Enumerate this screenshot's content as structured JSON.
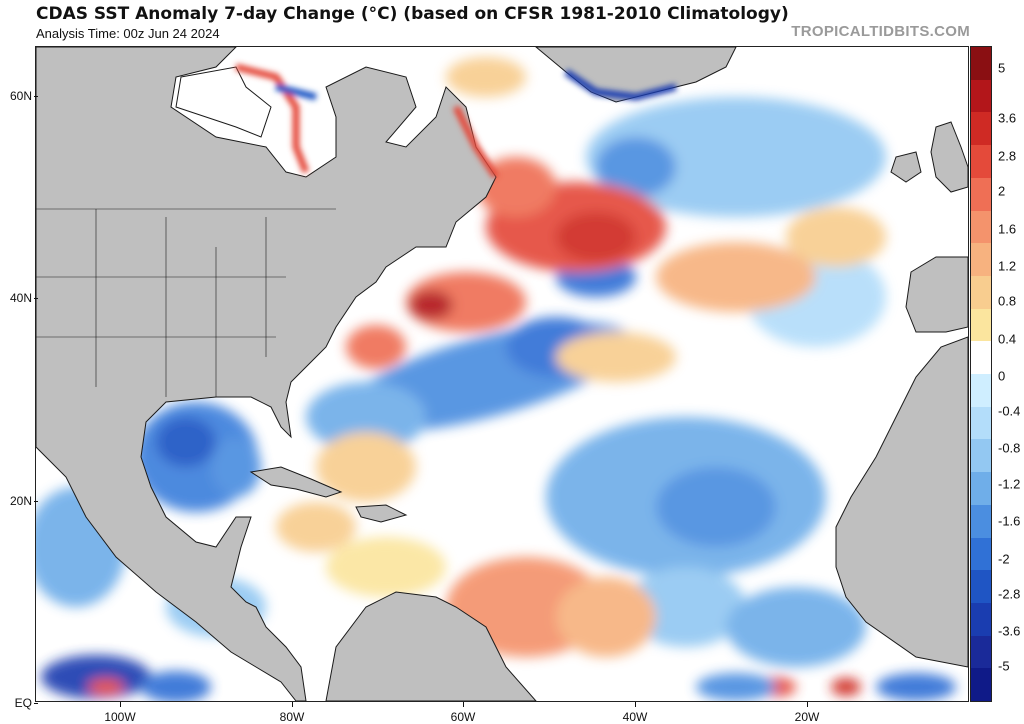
{
  "header": {
    "title": "CDAS SST Anomaly 7-day Change (°C) (based on CFSR 1981-2010 Climatology)",
    "subtitle": "Analysis Time: 00z Jun 24 2024",
    "credit": "TROPICALTIDBITS.COM"
  },
  "axes": {
    "lat_labels": [
      "60N",
      "40N",
      "20N",
      "EQ"
    ],
    "lon_labels": [
      "100W",
      "80W",
      "60W",
      "40W",
      "20W"
    ]
  },
  "colorbar": {
    "labels": [
      "5",
      "3.6",
      "2.8",
      "2",
      "1.6",
      "1.2",
      "0.8",
      "0.4",
      "0",
      "-0.4",
      "-0.8",
      "-1.2",
      "-1.6",
      "-2",
      "-2.8",
      "-3.6",
      "-5"
    ],
    "colors": [
      "#8a0f12",
      "#b3161a",
      "#cf2a24",
      "#e44a3a",
      "#ef6f55",
      "#f4936c",
      "#f7b27f",
      "#f8cd8f",
      "#fbe59e",
      "#ffffff",
      "#cfeeff",
      "#b3ddfa",
      "#93c8f2",
      "#6faee9",
      "#4b8ee0",
      "#3071d6",
      "#1f55c4",
      "#1a3db0",
      "#1a2a99",
      "#0f1a88"
    ]
  },
  "colors": {
    "land": "#bfbfbf",
    "coast": "#1a1a1a",
    "ocean_neutral": "#ffffff",
    "sea_ice": "#ffffff"
  }
}
